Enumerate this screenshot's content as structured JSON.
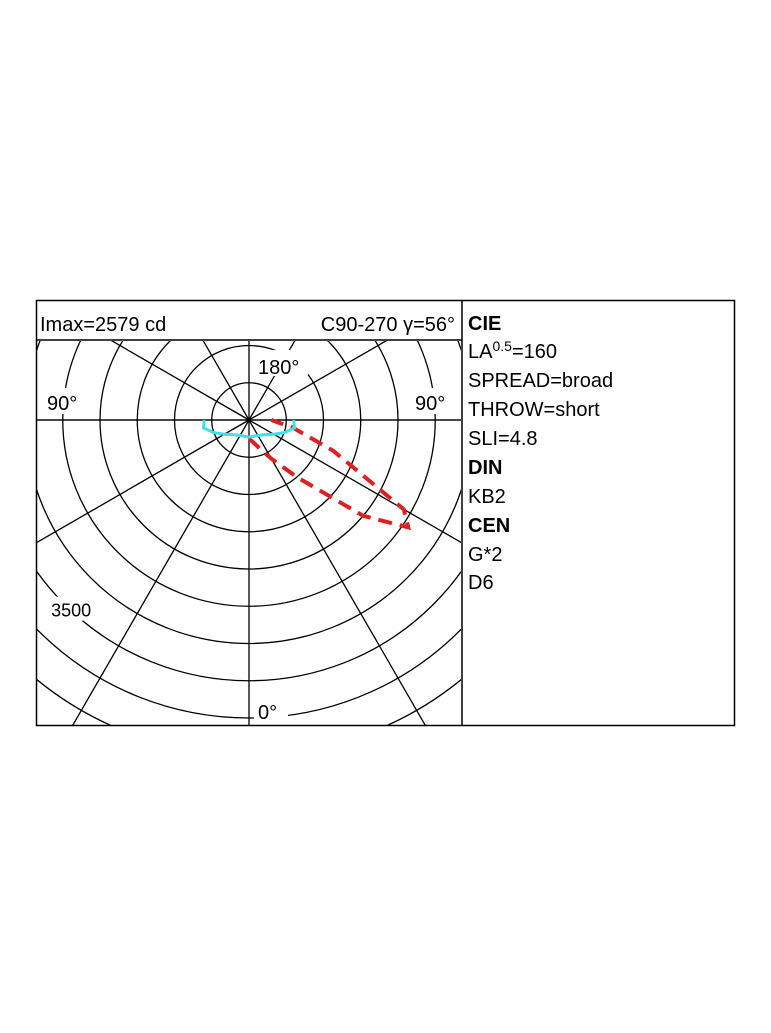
{
  "chart_data": {
    "type": "polar",
    "header_left": "Imax=2579 cd",
    "header_right": "C90-270 γ=56°",
    "angle_ticks": [
      {
        "value": 180,
        "label": "180°"
      },
      {
        "value": -90,
        "label": "90°"
      },
      {
        "value": 90,
        "label": "90°"
      },
      {
        "value": 0,
        "label": "0°"
      }
    ],
    "rays": [
      0,
      30,
      60,
      90,
      120,
      150,
      180,
      210,
      240,
      270,
      300,
      330
    ],
    "rgrid": [
      500,
      1000,
      1500,
      2000,
      2500,
      3000,
      3500,
      4000,
      4500,
      5000,
      5500
    ],
    "rticks": [
      3500
    ],
    "series": [
      {
        "color": "#e02020",
        "dashed": true,
        "x": [
          0,
          10,
          20,
          30,
          40,
          50,
          56,
          60,
          70,
          80,
          90
        ],
        "values": [
          250,
          300,
          400,
          600,
          1000,
          2000,
          2579,
          2400,
          1200,
          600,
          300
        ]
      },
      {
        "color": "#40e0e8",
        "dashed": false,
        "x": [
          -90,
          -80,
          -70,
          -60,
          -45,
          -30,
          0,
          30,
          45,
          60,
          70,
          80,
          90
        ],
        "values": [
          600,
          620,
          500,
          380,
          280,
          240,
          230,
          240,
          280,
          380,
          500,
          620,
          600
        ]
      }
    ]
  },
  "info": {
    "cie": "CIE",
    "la": "LA",
    "la_sup": "0.5",
    "la_value": "=160",
    "spread": "SPREAD=broad",
    "throw": "THROW=short",
    "sli": "SLI=4.8",
    "din": "DIN",
    "kb": "KB2",
    "cen": "CEN",
    "g": "G*2",
    "d": "D6"
  }
}
